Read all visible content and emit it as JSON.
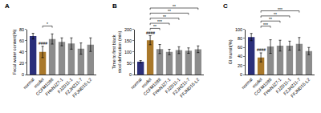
{
  "chart_data": [
    {
      "type": "bar",
      "title": "A",
      "y_label": "Fecal water content(%)",
      "categories": [
        "normal",
        "model",
        "CCFM1088",
        "FHeNJZ7-1",
        "FJZD11-1",
        "FZJHZ11-7",
        "FFJND15-L2"
      ],
      "values": [
        68,
        40,
        63,
        58,
        55,
        46,
        53
      ],
      "errors": [
        5,
        10,
        9,
        7,
        10,
        10,
        12
      ],
      "colors": [
        "#2b2f7a",
        "#a9782a",
        "#8c8c8c",
        "#8c8c8c",
        "#8c8c8c",
        "#8c8c8c",
        "#8c8c8c"
      ],
      "ylim": [
        0,
        80
      ],
      "yticks": [
        0,
        20,
        40,
        60,
        80
      ],
      "grid": false,
      "annotations": [
        {
          "category": "model",
          "text": "####"
        }
      ],
      "comparisons": [
        {
          "from": "model",
          "to": "CCFM1088",
          "label": "*"
        }
      ]
    },
    {
      "type": "bar",
      "title": "B",
      "y_label": "Time to first black\nstool defecation (min)",
      "categories": [
        "normal",
        "model",
        "CCFM1088",
        "FHeNJZ7-1",
        "FJZD11-1",
        "FZJHZ11-7",
        "FFJND15-L2"
      ],
      "values": [
        57,
        152,
        113,
        100,
        108,
        106,
        112
      ],
      "errors": [
        5,
        20,
        20,
        12,
        15,
        12,
        15
      ],
      "colors": [
        "#2b2f7a",
        "#a9782a",
        "#8c8c8c",
        "#8c8c8c",
        "#8c8c8c",
        "#8c8c8c",
        "#8c8c8c"
      ],
      "ylim": [
        0,
        200
      ],
      "yticks": [
        0,
        50,
        100,
        150,
        200
      ],
      "grid": false,
      "annotations": [
        {
          "category": "model",
          "text": "####"
        }
      ],
      "comparisons": [
        {
          "from": "model",
          "to": "CCFM1088",
          "label": "**"
        },
        {
          "from": "model",
          "to": "FHeNJZ7-1",
          "label": "***"
        },
        {
          "from": "model",
          "to": "FJZD11-1",
          "label": "**"
        },
        {
          "from": "model",
          "to": "FZJHZ11-7",
          "label": "**"
        },
        {
          "from": "model",
          "to": "FFJND15-L2",
          "label": "**"
        }
      ]
    },
    {
      "type": "bar",
      "title": "C",
      "y_label": "GI transit(%)",
      "categories": [
        "normal",
        "model",
        "CCFM1088",
        "FHeNJZ7-1",
        "FJZD11-1",
        "FZJHZ11-7",
        "FFJND15-L2"
      ],
      "values": [
        83,
        38,
        62,
        64,
        64,
        68,
        52
      ],
      "errors": [
        8,
        10,
        15,
        12,
        10,
        14,
        8
      ],
      "colors": [
        "#2b2f7a",
        "#a9782a",
        "#8c8c8c",
        "#8c8c8c",
        "#8c8c8c",
        "#8c8c8c",
        "#8c8c8c"
      ],
      "ylim": [
        0,
        100
      ],
      "yticks": [
        0,
        20,
        40,
        60,
        80,
        100
      ],
      "grid": false,
      "annotations": [
        {
          "category": "model",
          "text": "####"
        }
      ],
      "comparisons": [
        {
          "from": "model",
          "to": "CCFM1088",
          "label": "***"
        },
        {
          "from": "model",
          "to": "FHeNJZ7-1",
          "label": "**"
        },
        {
          "from": "model",
          "to": "FJZD11-1",
          "label": "**"
        },
        {
          "from": "model",
          "to": "FZJHZ11-7",
          "label": "***"
        }
      ]
    }
  ]
}
